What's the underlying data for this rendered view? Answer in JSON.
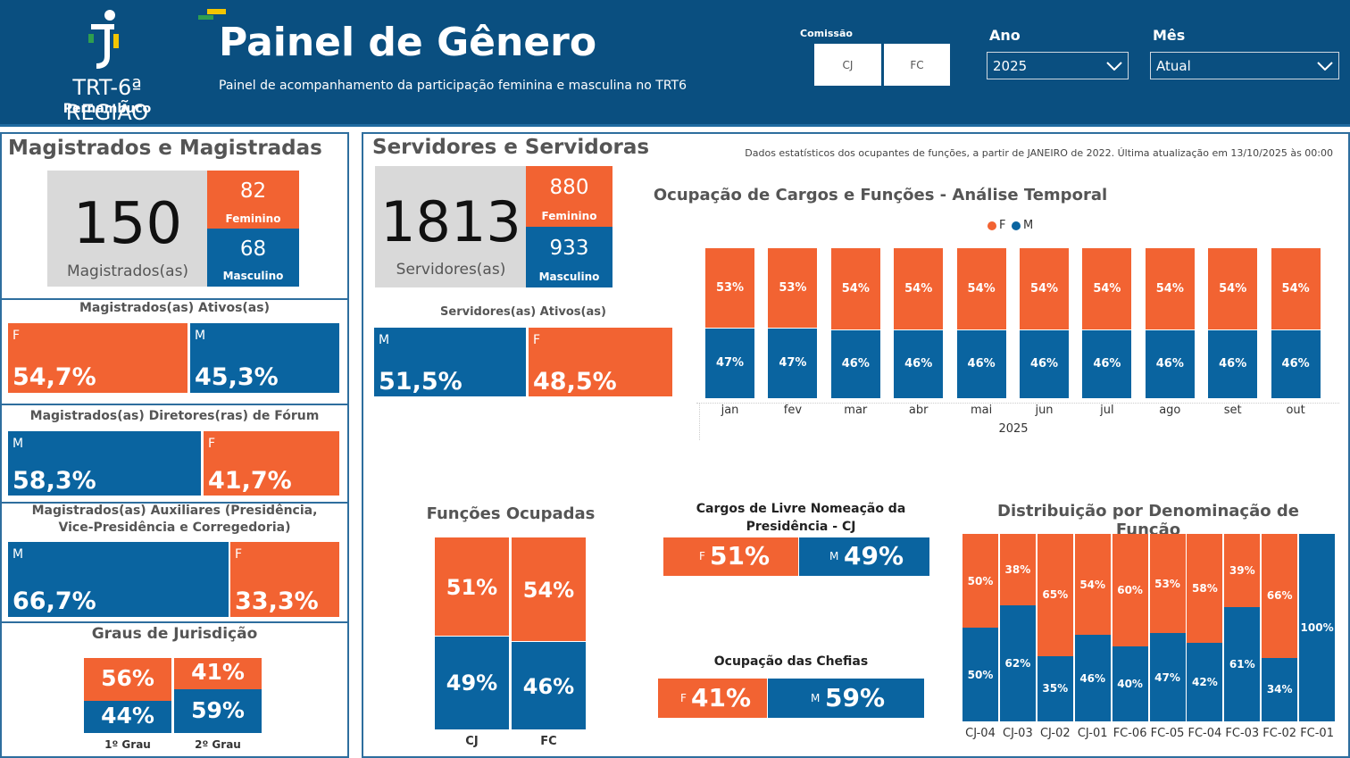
{
  "header": {
    "logo_main": "TRT-6ª REGIÃO",
    "logo_sub": "Pernambuco",
    "title": "Painel de Gênero",
    "subtitle": "Painel de acompanhamento da participação feminina e masculina no TRT6",
    "comissao_label": "Comissão",
    "comissao_options": [
      "CJ",
      "FC"
    ],
    "ano_label": "Ano",
    "ano_value": "2025",
    "mes_label": "Mês",
    "mes_value": "Atual"
  },
  "colors": {
    "header_bg": "#0a4f80",
    "feminino": "#f26332",
    "masculino": "#0a64a0"
  },
  "magistrados": {
    "title": "Magistrados e Magistradas",
    "total": "150",
    "total_label": "Magistrados(as)",
    "fem_value": "82",
    "fem_label": "Feminino",
    "masc_value": "68",
    "masc_label": "Masculino",
    "ativos": {
      "title": "Magistrados(as) Ativos(as)",
      "first_label": "F",
      "first_pct": "54,7%",
      "second_label": "M",
      "second_pct": "45,3%"
    },
    "diretores": {
      "title": "Magistrados(as) Diretores(ras) de Fórum",
      "first_label": "M",
      "first_pct": "58,3%",
      "second_label": "F",
      "second_pct": "41,7%"
    },
    "auxiliares": {
      "title_line1": "Magistrados(as) Auxiliares (Presidência,",
      "title_line2": "Vice-Presidência e Corregedoria)",
      "first_label": "M",
      "first_pct": "66,7%",
      "second_label": "F",
      "second_pct": "33,3%"
    },
    "graus": {
      "title": "Graus de Jurisdição",
      "items": [
        {
          "label": "1º Grau",
          "f": "56%",
          "m": "44%"
        },
        {
          "label": "2º Grau",
          "f": "41%",
          "m": "59%"
        }
      ]
    }
  },
  "servidores": {
    "title": "Servidores e Servidoras",
    "note": "Dados estatísticos dos ocupantes de funções, a partir de JANEIRO de 2022. Última atualização em 13/10/2025 às 00:00",
    "total": "1813",
    "total_label": "Servidores(as)",
    "fem_value": "880",
    "fem_label": "Feminino",
    "masc_value": "933",
    "masc_label": "Masculino",
    "ativos": {
      "title": "Servidores(as) Ativos(as)",
      "first_label": "M",
      "first_pct": "51,5%",
      "second_label": "F",
      "second_pct": "48,5%"
    },
    "temporal_title": "Ocupação de Cargos e Funções - Análise Temporal",
    "legend_f": "F",
    "legend_m": "M",
    "year_label": "2025",
    "funcoes_title": "Funções Ocupadas",
    "cargos_title_line1": "Cargos de Livre Nomeação da",
    "cargos_title_line2": "Presidência - CJ",
    "cargos": {
      "f_label": "F",
      "f_pct": "51%",
      "m_label": "M",
      "m_pct": "49%"
    },
    "chefias_title": "Ocupação das Chefias",
    "chefias": {
      "f_label": "F",
      "f_pct": "41%",
      "m_label": "M",
      "m_pct": "59%"
    },
    "distrib_title": "Distribuição por Denominação de Função"
  },
  "chart_data": [
    {
      "type": "bar",
      "title": "Ocupação de Cargos e Funções - Análise Temporal",
      "stacked": "100%",
      "categories": [
        "jan",
        "fev",
        "mar",
        "abr",
        "mai",
        "jun",
        "jul",
        "ago",
        "set",
        "out"
      ],
      "series": [
        {
          "name": "F",
          "values": [
            53,
            53,
            54,
            54,
            54,
            54,
            54,
            54,
            54,
            54
          ]
        },
        {
          "name": "M",
          "values": [
            47,
            47,
            46,
            46,
            46,
            46,
            46,
            46,
            46,
            46
          ]
        }
      ],
      "legend": "top"
    },
    {
      "type": "bar",
      "title": "Funções Ocupadas",
      "stacked": "100%",
      "categories": [
        "CJ",
        "FC"
      ],
      "series": [
        {
          "name": "F",
          "values": [
            51,
            54
          ]
        },
        {
          "name": "M",
          "values": [
            49,
            46
          ]
        }
      ]
    },
    {
      "type": "bar",
      "title": "Distribuição por Denominação de Função",
      "stacked": "100%",
      "categories": [
        "CJ-04",
        "CJ-03",
        "CJ-02",
        "CJ-01",
        "FC-06",
        "FC-05",
        "FC-04",
        "FC-03",
        "FC-02",
        "FC-01"
      ],
      "series": [
        {
          "name": "F",
          "values": [
            50,
            38,
            65,
            54,
            60,
            53,
            58,
            39,
            66,
            0
          ]
        },
        {
          "name": "M",
          "values": [
            50,
            62,
            35,
            46,
            40,
            47,
            42,
            61,
            34,
            100
          ]
        }
      ]
    }
  ]
}
